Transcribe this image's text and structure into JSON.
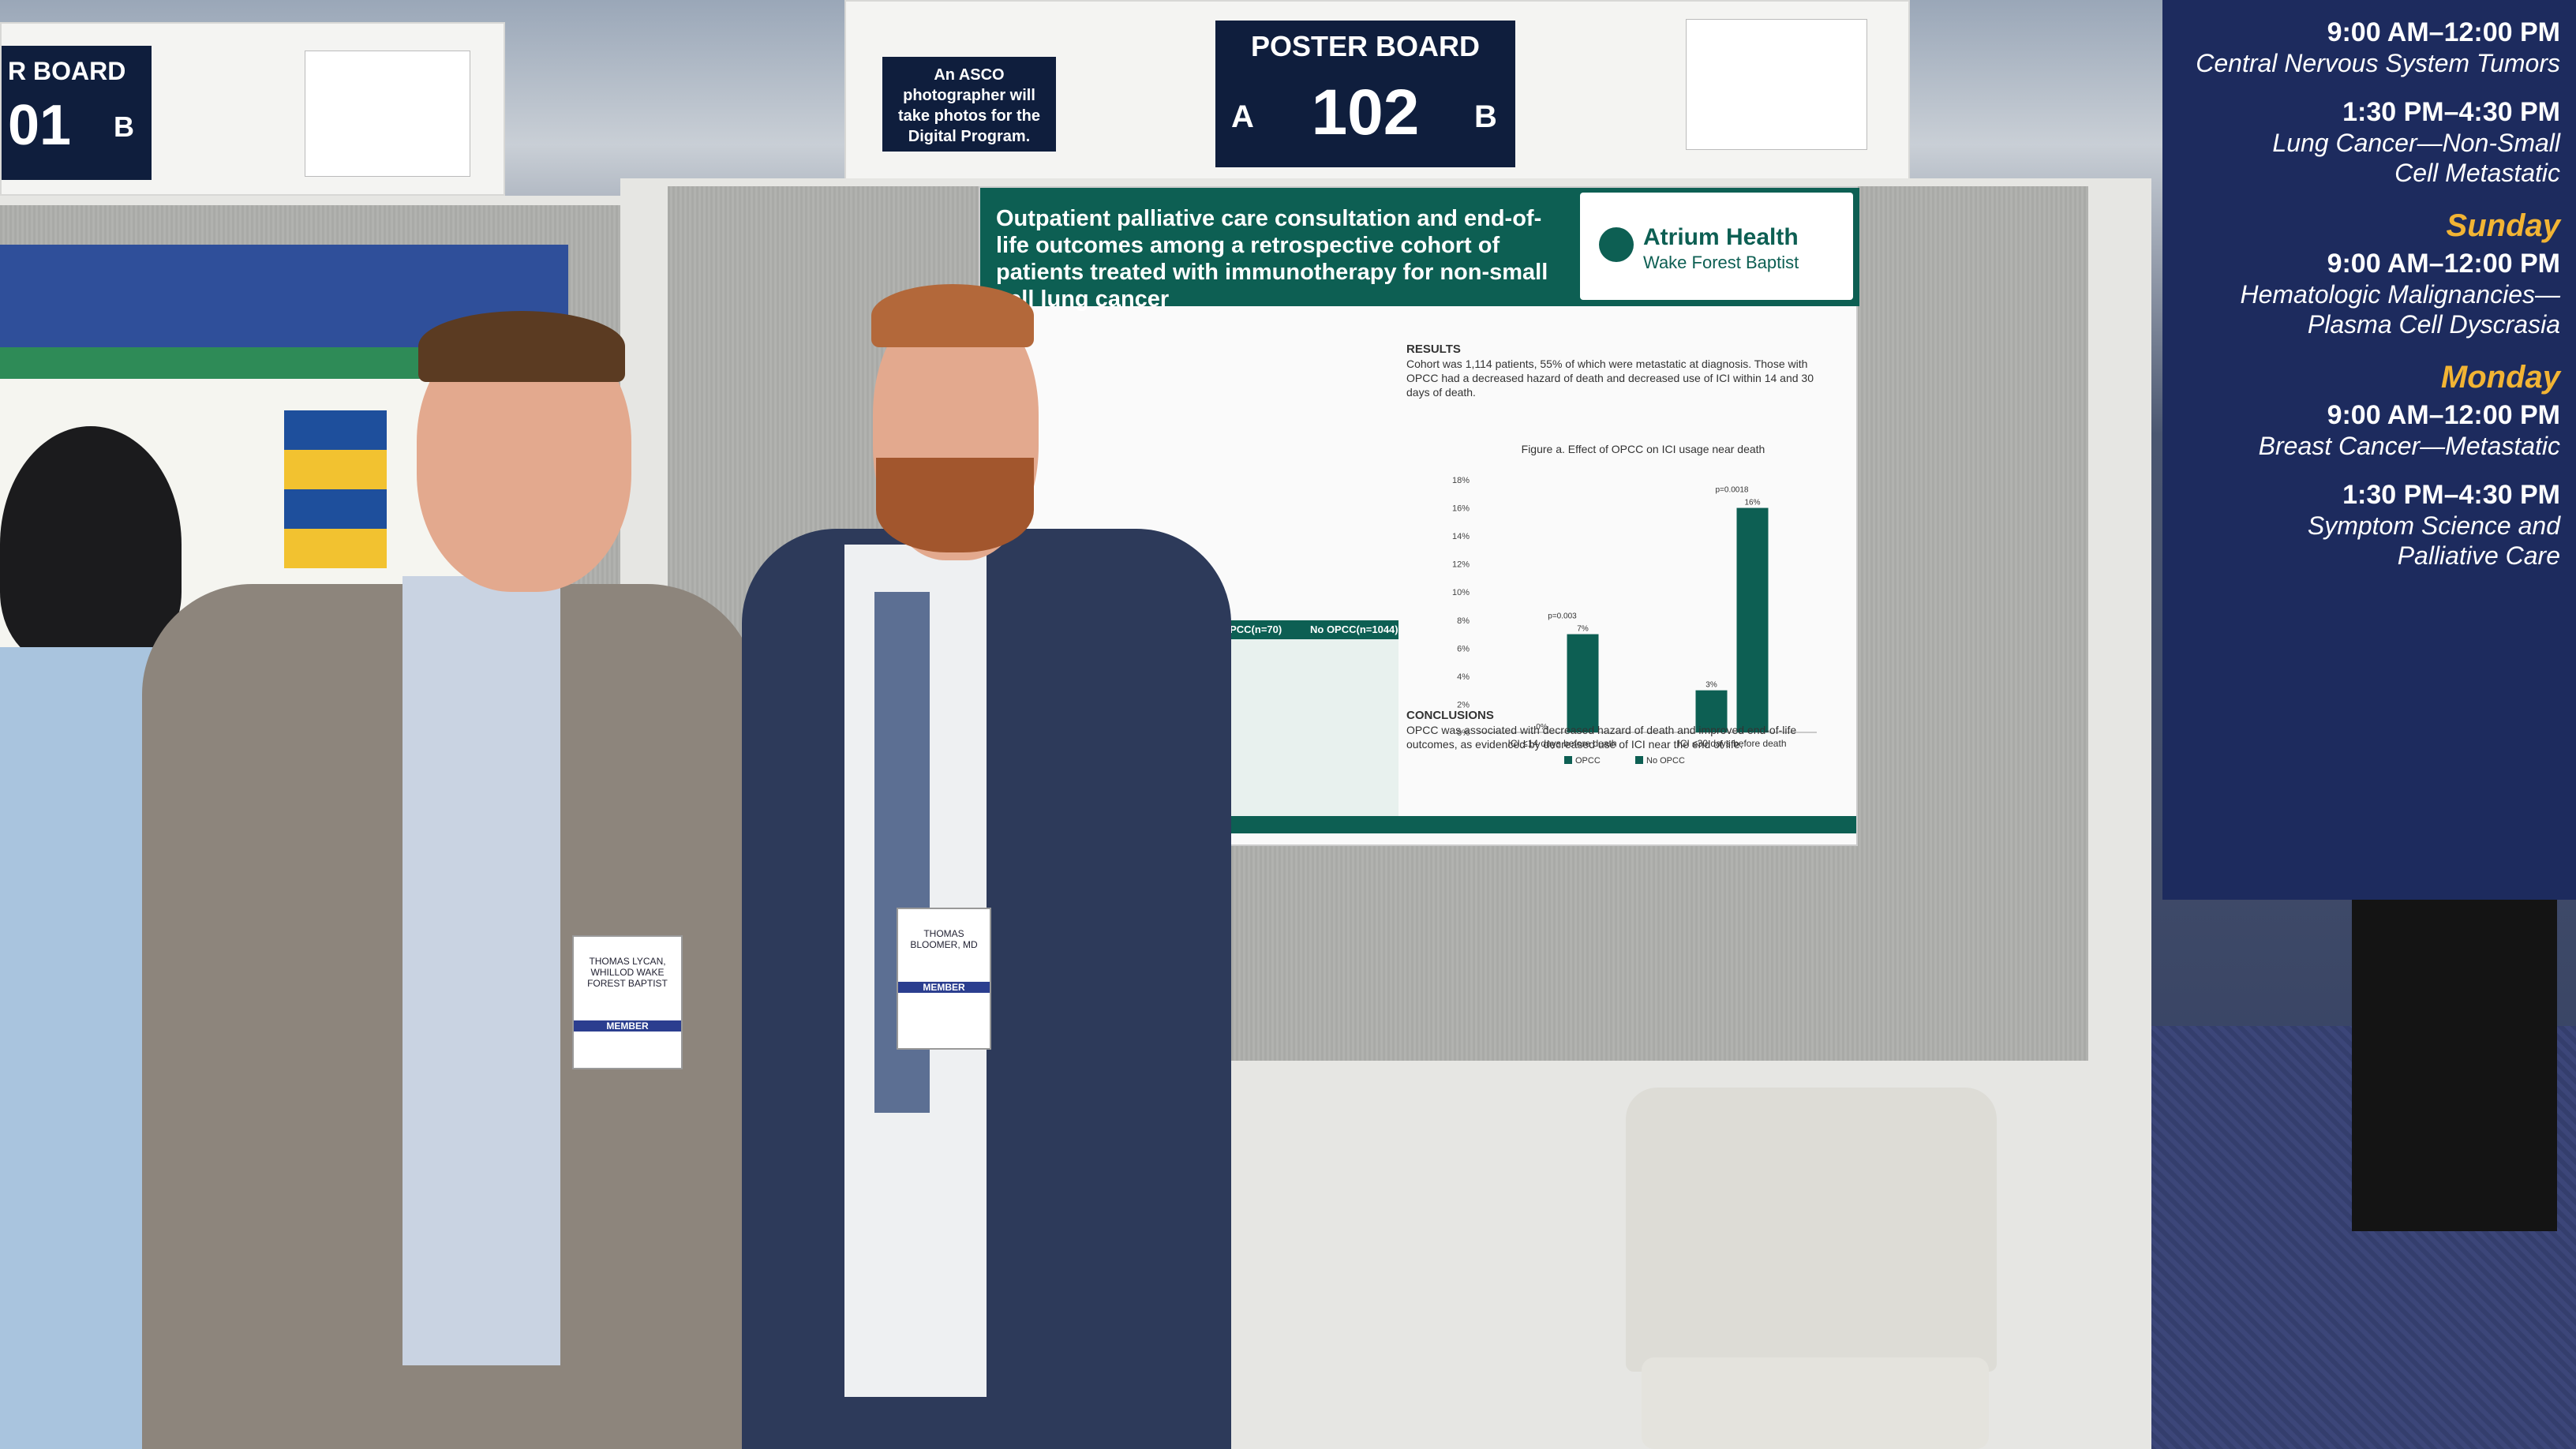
{
  "signs": {
    "left_board_label": "R BOARD",
    "left_board_number": "01",
    "left_board_side": "B",
    "photographer_notice": "An ASCO photographer will take photos for the Digital Program.",
    "main_board_label": "POSTER BOARD",
    "main_board_number": "102",
    "main_board_side_a": "A",
    "main_board_side_b": "B"
  },
  "schedule": {
    "slots": [
      {
        "day": "",
        "time": "9:00 AM–12:00 PM",
        "desc": "Central Nervous System Tumors"
      },
      {
        "day": "",
        "time": "1:30 PM–4:30 PM",
        "desc": "Lung Cancer—Non-Small Cell Metastatic"
      },
      {
        "day": "Sunday",
        "time": "9:00 AM–12:00 PM",
        "desc": "Hematologic Malignancies—Plasma Cell Dyscrasia"
      },
      {
        "day": "Monday",
        "time": "9:00 AM–12:00 PM",
        "desc": "Breast Cancer—Metastatic"
      },
      {
        "day": "",
        "time": "1:30 PM–4:30 PM",
        "desc": "Symptom Science and Palliative Care"
      }
    ]
  },
  "poster": {
    "title": "Outpatient palliative care consultation and end-of-life outcomes among a retrospective cohort of patients treated with immunotherapy for non-small cell lung cancer",
    "logo_name": "Atrium Health",
    "logo_sub": "Wake Forest Baptist",
    "results_heading": "RESULTS",
    "results_text": "Cohort was 1,114 patients, 55% of which were metastatic at diagnosis. Those with OPCC had a decreased hazard of death and decreased use of ICI within 14 and 30 days of death.",
    "conclusions_heading": "CONCLUSIONS",
    "conclusions_text": "OPCC was associated with decreased hazard of death and improved end-of-life outcomes, as evidenced by decreased use of ICI near the end of life.",
    "table_col1": "OPCC(n=70)",
    "table_col2": "No OPCC(n=1044)"
  },
  "chart_data": {
    "type": "bar",
    "title": "Figure a. Effect of OPCC on ICI usage near death",
    "categories": [
      "ICI ≤14 days before death",
      "ICI ≤30 days before death"
    ],
    "series": [
      {
        "name": "OPCC",
        "values": [
          0,
          3
        ]
      },
      {
        "name": "No OPCC",
        "values": [
          7,
          16
        ]
      }
    ],
    "ylim": [
      0,
      18
    ],
    "yticks": [
      "0%",
      "2%",
      "4%",
      "6%",
      "8%",
      "10%",
      "12%",
      "14%",
      "16%",
      "18%"
    ],
    "annotations": [
      "p=0.003",
      "p=0.0018"
    ],
    "colors": {
      "OPCC": "#0d5f53",
      "No OPCC": "#0d5f53"
    }
  },
  "people": {
    "left_badge": "THOMAS LYCAN, WHILLOD WAKE FOREST BAPTIST",
    "left_badge_tag": "MEMBER",
    "right_badge": "THOMAS BLOOMER, MD",
    "right_badge_tag": "MEMBER"
  },
  "colors": {
    "teal": "#0d5f53",
    "navy": "#1d2b5e",
    "gold": "#f2b434"
  }
}
